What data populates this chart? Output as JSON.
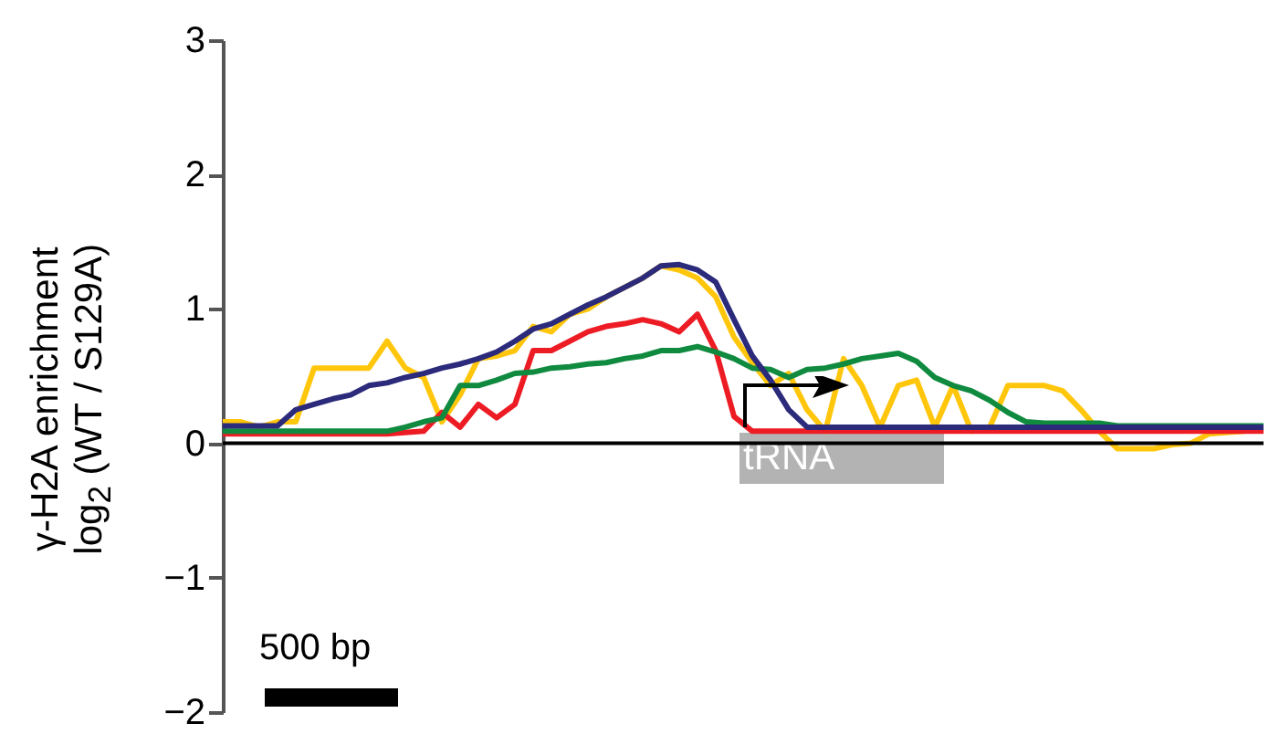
{
  "chart_data": {
    "type": "line",
    "ylabel": "γ-H2A enrichment\nlog$_{2}$ (WT / S129A)",
    "categories": [
      null,
      null,
      null,
      null,
      null,
      null,
      null,
      null,
      null,
      null,
      null,
      null,
      null,
      null,
      null,
      null,
      null,
      null,
      null,
      null,
      null,
      null,
      null,
      null,
      null,
      null,
      null,
      null,
      null,
      null,
      null,
      null,
      null,
      null,
      null,
      null,
      null,
      null,
      null,
      null,
      null,
      null,
      null,
      null,
      null,
      null,
      null,
      null,
      null,
      null,
      null,
      null,
      null,
      null,
      null,
      null,
      null,
      null
    ],
    "series": [
      {
        "color": "#ffc60b",
        "values": [
          0.16,
          0.16,
          0.12,
          0.16,
          0.16,
          0.56,
          0.56,
          0.56,
          0.56,
          0.76,
          0.56,
          0.49,
          0.16,
          0.36,
          0.63,
          0.65,
          0.69,
          0.87,
          0.83,
          0.96,
          1.0,
          1.09,
          1.16,
          1.23,
          1.32,
          1.29,
          1.23,
          1.09,
          0.79,
          0.6,
          0.43,
          0.52,
          0.25,
          0.09,
          0.63,
          0.43,
          0.12,
          0.43,
          0.47,
          0.12,
          0.43,
          0.09,
          0.12,
          0.43,
          0.43,
          0.43,
          0.39,
          0.25,
          0.09,
          -0.04,
          -0.04,
          -0.04,
          -0.01,
          0.0,
          0.07,
          0.08,
          0.09,
          null
        ]
      },
      {
        "color": "#ed1c24",
        "values": [
          0.07,
          0.07,
          0.07,
          0.07,
          0.07,
          0.07,
          0.07,
          0.07,
          0.07,
          0.07,
          0.08,
          0.09,
          0.23,
          0.12,
          0.29,
          0.19,
          0.29,
          0.69,
          0.69,
          0.76,
          0.83,
          0.87,
          0.89,
          0.92,
          0.89,
          0.83,
          0.96,
          0.69,
          0.2,
          0.09,
          0.09,
          0.09,
          0.09,
          0.09,
          0.09,
          0.09,
          0.09,
          0.09,
          0.09,
          0.09,
          0.09,
          0.09,
          0.09,
          0.09,
          0.09,
          0.09,
          0.09,
          0.09,
          0.09,
          0.09,
          0.09,
          0.09,
          0.09,
          0.09,
          0.09,
          0.09,
          0.09,
          0.09
        ]
      },
      {
        "color": "#0f8a3f",
        "values": [
          0.09,
          0.09,
          0.09,
          0.09,
          0.09,
          0.09,
          0.09,
          0.09,
          0.09,
          0.09,
          0.12,
          0.16,
          0.19,
          0.43,
          0.43,
          0.47,
          0.52,
          0.53,
          0.56,
          0.57,
          0.59,
          0.6,
          0.63,
          0.65,
          0.69,
          0.69,
          0.72,
          0.68,
          0.63,
          0.56,
          0.55,
          0.49,
          0.55,
          0.56,
          0.59,
          0.63,
          0.65,
          0.67,
          0.61,
          0.49,
          0.43,
          0.39,
          0.32,
          0.23,
          0.16,
          0.15,
          0.15,
          0.15,
          0.15,
          0.13,
          0.13,
          0.13,
          0.13,
          0.13,
          0.13,
          0.13,
          0.13,
          0.13
        ]
      },
      {
        "color": "#2b2a7b",
        "values": [
          0.13,
          0.13,
          0.13,
          0.13,
          0.25,
          0.29,
          0.33,
          0.36,
          0.43,
          0.45,
          0.49,
          0.52,
          0.56,
          0.59,
          0.63,
          0.68,
          0.76,
          0.85,
          0.89,
          0.96,
          1.03,
          1.09,
          1.16,
          1.23,
          1.32,
          1.33,
          1.29,
          1.2,
          0.92,
          0.65,
          0.47,
          0.25,
          0.12,
          0.12,
          0.12,
          0.12,
          0.12,
          0.12,
          0.12,
          0.12,
          0.12,
          0.12,
          0.12,
          0.12,
          0.12,
          0.12,
          0.12,
          0.12,
          0.12,
          0.12,
          0.12,
          0.12,
          0.12,
          0.12,
          0.12,
          0.12,
          0.12,
          0.12
        ]
      }
    ],
    "ylim": [
      -2,
      3
    ],
    "yticks": [
      {
        "value": -2,
        "label": "−2"
      },
      {
        "value": -1,
        "label": "−1"
      },
      0,
      1,
      2,
      3
    ],
    "ref_lines": [
      {
        "axis": "y",
        "value": 0,
        "color": "#000000"
      }
    ],
    "annotations": [
      "tRNA",
      "500 bp"
    ]
  }
}
